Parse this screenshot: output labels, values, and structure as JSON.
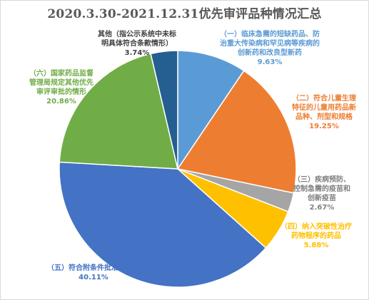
{
  "chart_data": {
    "type": "pie",
    "title": "2020.3.30-2021.12.31优先审评品种情况汇总",
    "slices": [
      {
        "label": [
          "（一）临床急需的短缺药品、防",
          "治重大传染病和罕见病等疾病的",
          "创新药和改良型新药"
        ],
        "value_label": "9.63%",
        "value": 9.63,
        "color": "#5b9bd5"
      },
      {
        "label": [
          "（二）符合儿童生理",
          "特征的儿童用药品新",
          "品种、剂型和规格"
        ],
        "value_label": "19.25%",
        "value": 19.25,
        "color": "#ed7d31"
      },
      {
        "label": [
          "（三）疾病预防、",
          "控制急需的疫苗和",
          "创新疫苗"
        ],
        "value_label": "2.67%",
        "value": 2.67,
        "color": "#a5a5a5"
      },
      {
        "label": [
          "（四）纳入突破性治疗",
          "药物程序的药品"
        ],
        "value_label": "5.88%",
        "value": 5.88,
        "color": "#ffc000"
      },
      {
        "label": [
          "（五）符合附条件批准的药品"
        ],
        "value_label": "40.11%",
        "value": 40.11,
        "color": "#4472c4"
      },
      {
        "label": [
          "（六）国家药品监督",
          "管理局规定其他优先",
          "审评审批的情形"
        ],
        "value_label": "20.86%",
        "value": 20.86,
        "color": "#70ad47"
      },
      {
        "label": [
          "其他（指公示系统中未标",
          "明具体符合条款情形）"
        ],
        "value_label": "3.74%",
        "value": 3.74,
        "color": "#255e91"
      }
    ],
    "start_angle_deg": 0,
    "direction": "clockwise",
    "legend": "none",
    "data_labels": "outside"
  },
  "colors": {
    "label_text_1": "#5b9bd5",
    "label_text_2": "#ed7d31",
    "label_text_3": "#808080",
    "label_text_4": "#ffc000",
    "label_text_5": "#4472c4",
    "label_text_6": "#70ad47",
    "label_text_7": "#404040"
  }
}
